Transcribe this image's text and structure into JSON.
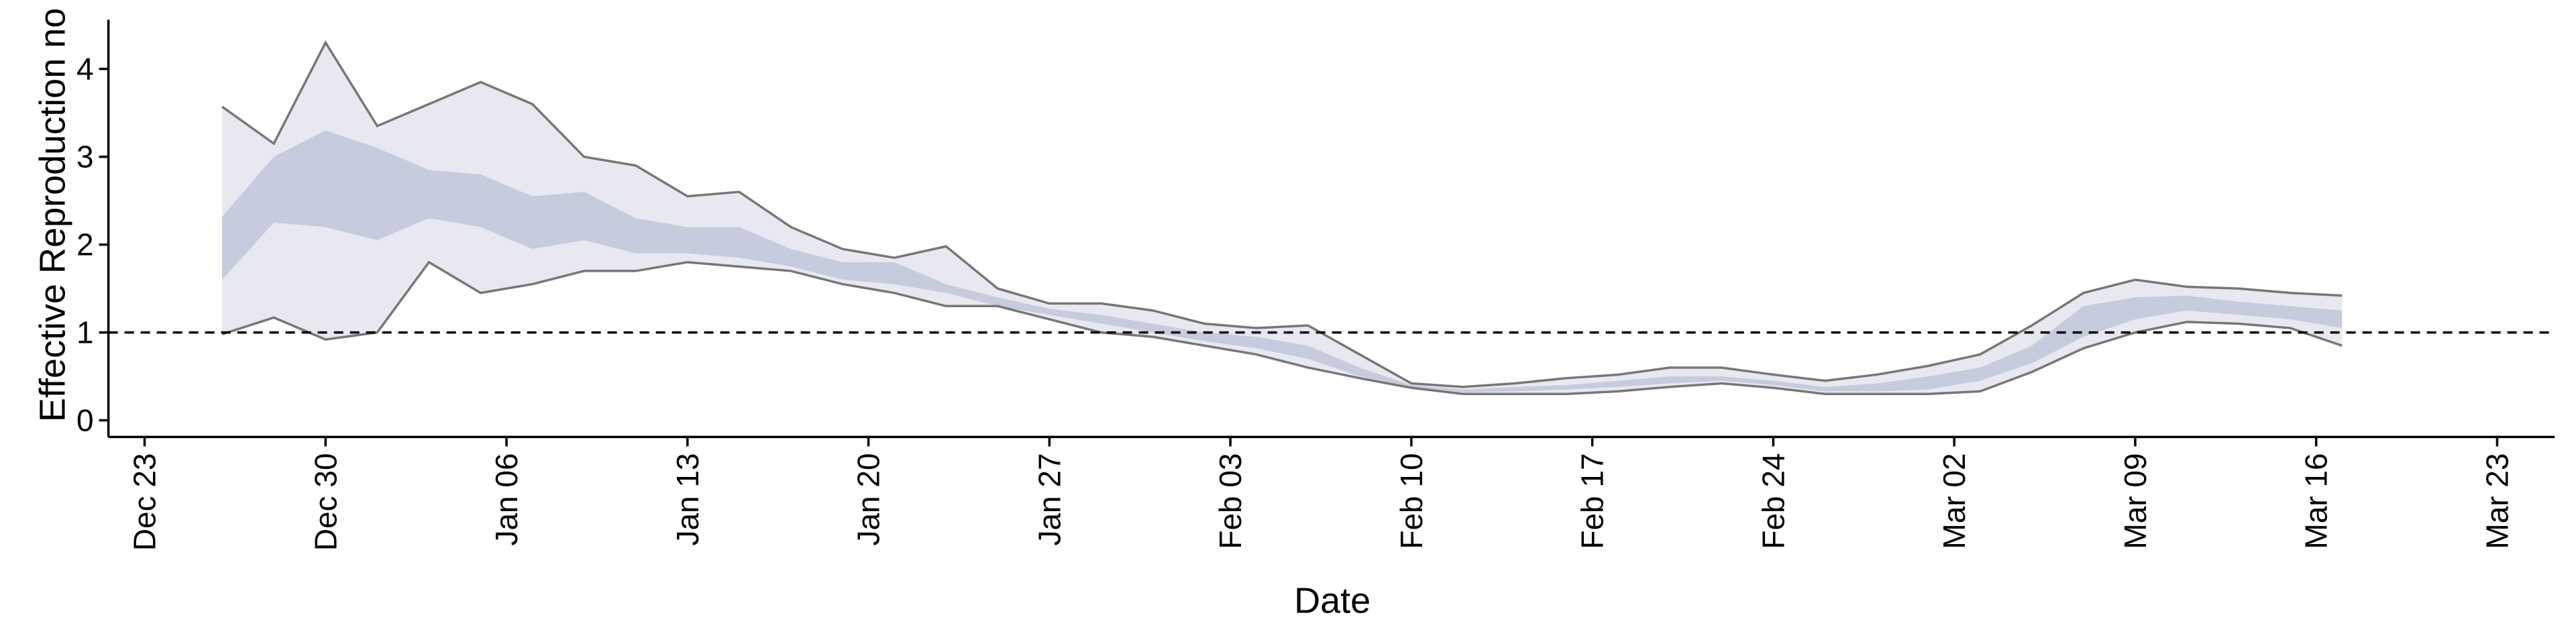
{
  "chart_data": {
    "type": "band",
    "x_label": "Date",
    "y_label": "Effective Reproduction no",
    "x": [
      "Dec 26",
      "Dec 28",
      "Dec 30",
      "Jan 01",
      "Jan 03",
      "Jan 05",
      "Jan 07",
      "Jan 09",
      "Jan 11",
      "Jan 13",
      "Jan 15",
      "Jan 17",
      "Jan 19",
      "Jan 21",
      "Jan 23",
      "Jan 25",
      "Jan 27",
      "Jan 29",
      "Jan 31",
      "Feb 02",
      "Feb 04",
      "Feb 06",
      "Feb 08",
      "Feb 10",
      "Feb 12",
      "Feb 14",
      "Feb 16",
      "Feb 18",
      "Feb 20",
      "Feb 22",
      "Feb 24",
      "Feb 26",
      "Feb 28",
      "Mar 01",
      "Mar 03",
      "Mar 05",
      "Mar 07",
      "Mar 09",
      "Mar 11",
      "Mar 13",
      "Mar 15",
      "Mar 17"
    ],
    "outer": {
      "color": "#e8e9f0",
      "line_color": "#777777",
      "upper": [
        3.57,
        3.15,
        4.3,
        3.35,
        3.6,
        3.85,
        3.6,
        3.0,
        2.9,
        2.55,
        2.6,
        2.2,
        1.95,
        1.85,
        1.98,
        1.5,
        1.33,
        1.33,
        1.25,
        1.1,
        1.05,
        1.08,
        0.75,
        0.42,
        0.38,
        0.42,
        0.48,
        0.52,
        0.6,
        0.6,
        0.52,
        0.45,
        0.52,
        0.62,
        0.75,
        1.08,
        1.45,
        1.6,
        1.52,
        1.5,
        1.45,
        1.42
      ],
      "lower": [
        0.98,
        1.17,
        0.92,
        1.0,
        1.8,
        1.45,
        1.55,
        1.7,
        1.7,
        1.8,
        1.75,
        1.7,
        1.55,
        1.45,
        1.3,
        1.3,
        1.15,
        1.0,
        0.95,
        0.85,
        0.75,
        0.6,
        0.48,
        0.37,
        0.3,
        0.3,
        0.3,
        0.33,
        0.38,
        0.42,
        0.37,
        0.3,
        0.3,
        0.3,
        0.33,
        0.55,
        0.82,
        1.0,
        1.12,
        1.1,
        1.05,
        0.85
      ]
    },
    "inner": {
      "color": "#c6ccdd",
      "upper": [
        2.32,
        3.0,
        3.3,
        3.1,
        2.85,
        2.8,
        2.55,
        2.6,
        2.3,
        2.2,
        2.2,
        1.95,
        1.8,
        1.8,
        1.55,
        1.4,
        1.27,
        1.2,
        1.1,
        1.0,
        0.95,
        0.85,
        0.6,
        0.4,
        0.35,
        0.38,
        0.4,
        0.45,
        0.5,
        0.5,
        0.45,
        0.38,
        0.42,
        0.5,
        0.6,
        0.85,
        1.3,
        1.4,
        1.42,
        1.35,
        1.3,
        1.25
      ],
      "lower": [
        1.6,
        2.25,
        2.2,
        2.05,
        2.3,
        2.2,
        1.95,
        2.05,
        1.9,
        1.9,
        1.85,
        1.75,
        1.6,
        1.55,
        1.45,
        1.3,
        1.2,
        1.1,
        1.0,
        0.9,
        0.82,
        0.7,
        0.5,
        0.38,
        0.32,
        0.33,
        0.35,
        0.38,
        0.42,
        0.45,
        0.4,
        0.33,
        0.33,
        0.35,
        0.45,
        0.65,
        0.95,
        1.15,
        1.25,
        1.2,
        1.15,
        1.05
      ]
    },
    "reference_line": 1,
    "xlim": [
      "Dec 23",
      "Mar 23"
    ],
    "xticks": [
      "Dec 23",
      "Dec 30",
      "Jan 06",
      "Jan 13",
      "Jan 20",
      "Jan 27",
      "Feb 03",
      "Feb 10",
      "Feb 17",
      "Feb 24",
      "Mar 02",
      "Mar 09",
      "Mar 16",
      "Mar 23"
    ],
    "ylim": [
      -0.19,
      4.56
    ],
    "yticks": [
      0,
      1,
      2,
      3,
      4
    ]
  }
}
